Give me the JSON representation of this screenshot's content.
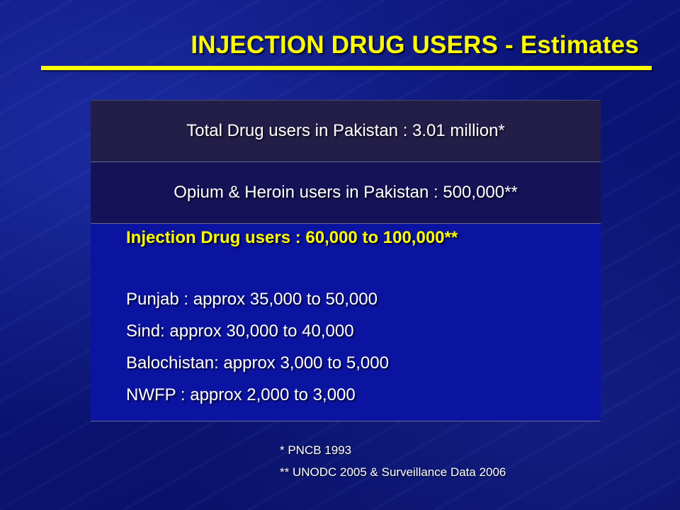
{
  "slide": {
    "title": "INJECTION DRUG USERS - Estimates",
    "colors": {
      "title": "#ffff00",
      "background": "#0a1474",
      "row1_bg": "#231e48",
      "row2_bg": "#151257",
      "row3_bg": "#0b14a0",
      "text": "#ffffff",
      "highlight_text": "#ffff00"
    }
  },
  "table": {
    "total": "Total Drug users in Pakistan : 3.01 million*",
    "opium": "Opium & Heroin users in Pakistan : 500,000**",
    "ivdu_heading": "Injection Drug users : 60,000 to 100,000**",
    "provinces": [
      "Punjab : approx 35,000 to 50,000",
      "Sind: approx 30,000 to 40,000",
      "Balochistan: approx 3,000 to 5,000",
      "NWFP : approx 2,000 to 3,000"
    ]
  },
  "references": [
    "* PNCB 1993",
    "** UNODC 2005 & Surveillance Data 2006"
  ]
}
